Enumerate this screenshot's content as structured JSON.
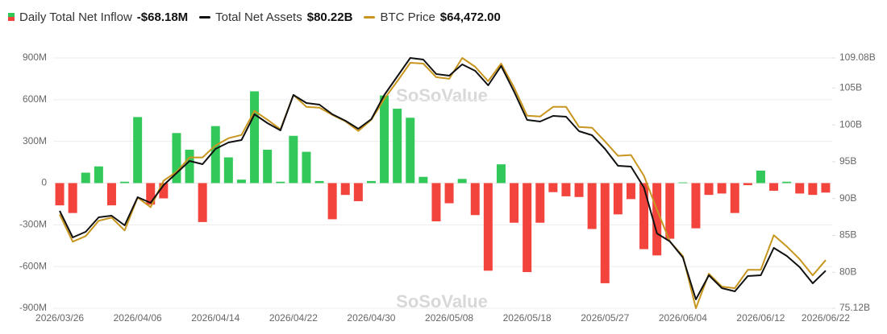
{
  "chart_data": {
    "type": "bar",
    "watermark": "SoSoValue",
    "categories": [
      "2026/03/26",
      null,
      null,
      null,
      null,
      null,
      "2026/04/06",
      null,
      null,
      null,
      null,
      null,
      "2026/04/14",
      null,
      null,
      null,
      null,
      null,
      "2026/04/22",
      null,
      null,
      null,
      null,
      null,
      "2026/04/30",
      null,
      null,
      null,
      null,
      null,
      "2026/05/08",
      null,
      null,
      null,
      null,
      null,
      "2026/05/18",
      null,
      null,
      null,
      null,
      null,
      "2026/05/27",
      null,
      null,
      null,
      null,
      null,
      "2026/06/04",
      null,
      null,
      null,
      null,
      null,
      "2026/06/12",
      null,
      null,
      null,
      null,
      "2026/06/22"
    ],
    "series": [
      {
        "name": "Daily Total Net Inflow",
        "current": "-$68.18M",
        "color": "#33c95a",
        "negative_color": "#f2433c",
        "values": [
          -160,
          -215,
          75,
          120,
          -160,
          10,
          475,
          -155,
          -110,
          360,
          240,
          -280,
          410,
          185,
          25,
          660,
          240,
          10,
          340,
          225,
          15,
          -260,
          -85,
          -130,
          15,
          630,
          535,
          470,
          45,
          -275,
          -145,
          30,
          -230,
          -630,
          135,
          -285,
          -640,
          -285,
          -65,
          -95,
          -100,
          -330,
          -720,
          -225,
          -115,
          -475,
          -520,
          -400,
          5,
          -325,
          -85,
          -75,
          -215,
          -15,
          90,
          -55,
          10,
          -75,
          -85,
          -68.18
        ]
      },
      {
        "name": "Total Net Assets",
        "current": "$80.22B",
        "type": "line",
        "axis": "y2",
        "color": "#111111",
        "values": [
          88.33,
          84.73,
          85.49,
          87.46,
          87.68,
          86.37,
          90.19,
          89.42,
          91.83,
          93.46,
          95.1,
          94.67,
          96.74,
          97.61,
          97.94,
          101.44,
          100.23,
          99.25,
          104.06,
          102.96,
          102.75,
          101.44,
          100.56,
          99.47,
          100.78,
          104.06,
          106.57,
          109.08,
          108.86,
          106.9,
          106.68,
          108.21,
          107.33,
          105.37,
          107.99,
          104.49,
          100.67,
          100.45,
          101.22,
          101.11,
          99.14,
          98.6,
          96.74,
          94.45,
          94.34,
          91.5,
          85.27,
          84.18,
          82.0,
          76.32,
          79.6,
          77.85,
          77.41,
          79.49,
          79.6,
          83.31,
          82.22,
          80.69,
          78.51,
          80.22
        ]
      },
      {
        "name": "BTC Price",
        "current": "$64,472.00",
        "type": "line",
        "color": "#c8961e",
        "values": [
          69600,
          66540,
          67170,
          68880,
          69240,
          67800,
          71490,
          70410,
          73380,
          74370,
          75990,
          75990,
          77340,
          78150,
          78510,
          81210,
          80220,
          79140,
          83010,
          81660,
          81570,
          80760,
          80040,
          78960,
          80220,
          82560,
          84540,
          86610,
          86520,
          84990,
          84810,
          87150,
          86160,
          84540,
          86520,
          83820,
          80670,
          80580,
          81660,
          81660,
          79410,
          79320,
          77790,
          76170,
          76260,
          73920,
          70140,
          66540,
          64920,
          59070,
          62940,
          61500,
          61320,
          63390,
          63390,
          67260,
          66000,
          64560,
          62760,
          64472
        ]
      }
    ],
    "ylim": [
      -900,
      900
    ],
    "yticks": [
      {
        "value": 900,
        "label": "900M"
      },
      {
        "value": 600,
        "label": "600M"
      },
      {
        "value": 300,
        "label": "300M"
      },
      0,
      {
        "value": -300,
        "label": "-300M"
      },
      {
        "value": -600,
        "label": "-600M"
      },
      {
        "value": -900,
        "label": "-900M"
      }
    ],
    "y2lim": [
      75.12,
      109.08
    ],
    "y2ticks": [
      {
        "value": 109.08,
        "label": "109.08B"
      },
      {
        "value": 105,
        "label": "105B"
      },
      {
        "value": 100,
        "label": "100B"
      },
      {
        "value": 95,
        "label": "95B"
      },
      {
        "value": 90,
        "label": "90B"
      },
      {
        "value": 85,
        "label": "85B"
      },
      {
        "value": 80,
        "label": "80B"
      },
      {
        "value": 75.12,
        "label": "75.12B"
      }
    ],
    "grid": true
  }
}
